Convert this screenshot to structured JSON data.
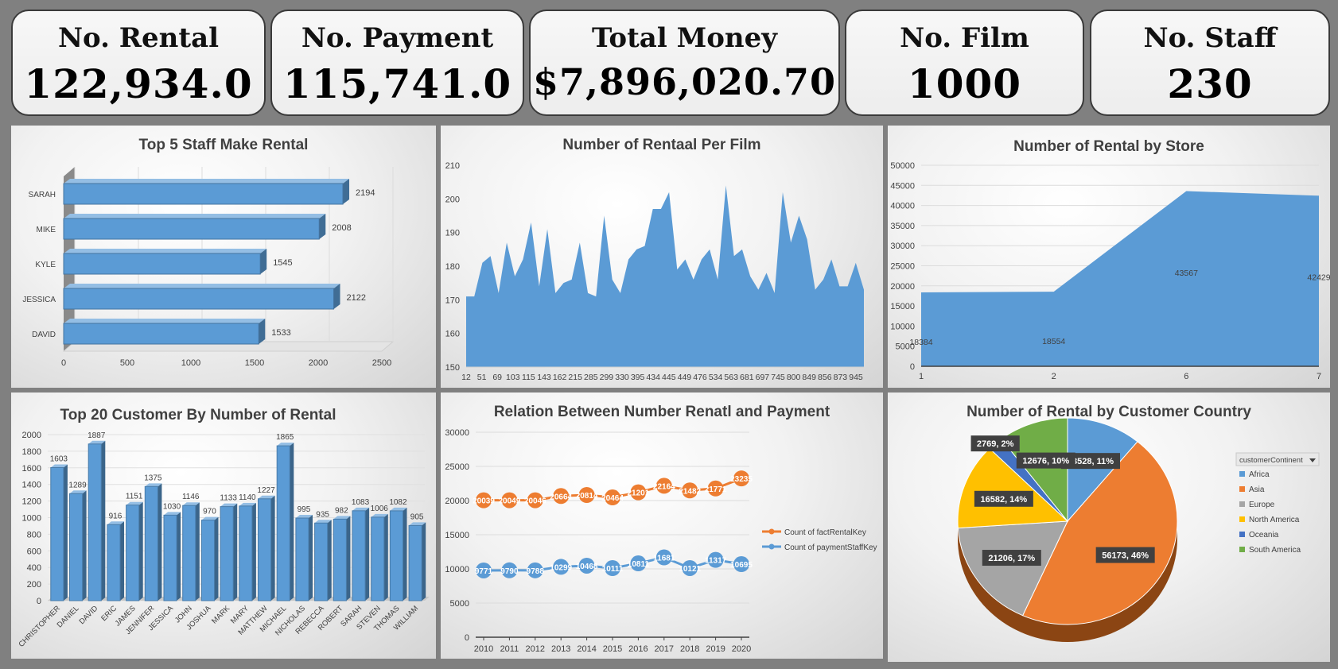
{
  "kpis": [
    {
      "label": "No. Rental",
      "value": "122,934.0"
    },
    {
      "label": "No. Payment",
      "value": "115,741.0"
    },
    {
      "label": "Total Money",
      "value": "$7,896,020.70"
    },
    {
      "label": "No. Film",
      "value": "1000"
    },
    {
      "label": "No. Staff",
      "value": "230"
    }
  ],
  "chart_data": [
    {
      "id": "staff",
      "type": "bar",
      "orientation": "horizontal",
      "title": "Top 5 Staff Make Rental",
      "categories": [
        "SARAH",
        "MIKE",
        "KYLE",
        "JESSICA",
        "DAVID"
      ],
      "values": [
        2194,
        2008,
        1545,
        2122,
        1533
      ],
      "xlim": [
        0,
        2500
      ],
      "xticks": [
        0,
        500,
        1000,
        1500,
        2000,
        2500
      ],
      "color": "#5b9bd5"
    },
    {
      "id": "film",
      "type": "area",
      "title": "Number of Rentaal Per Film",
      "x_ticks": [
        "12",
        "51",
        "69",
        "103",
        "115",
        "143",
        "162",
        "215",
        "285",
        "299",
        "330",
        "395",
        "434",
        "445",
        "449",
        "476",
        "534",
        "563",
        "681",
        "697",
        "745",
        "800",
        "849",
        "856",
        "873",
        "945"
      ],
      "values": [
        171,
        171,
        181,
        183,
        172,
        187,
        177,
        182,
        193,
        174,
        191,
        172,
        175,
        176,
        187,
        172,
        171,
        195,
        176,
        172,
        182,
        185,
        186,
        197,
        197,
        202,
        179,
        182,
        176,
        182,
        185,
        176,
        204,
        183,
        185,
        177,
        173,
        178,
        172,
        202,
        187,
        195,
        188,
        173,
        176,
        182,
        174,
        174,
        181,
        173
      ],
      "ylim": [
        150,
        210
      ],
      "yticks": [
        150,
        160,
        170,
        180,
        190,
        200,
        210
      ],
      "color": "#5b9bd5"
    },
    {
      "id": "store",
      "type": "area",
      "title": "Number of Rental by Store",
      "categories": [
        "1",
        "2",
        "6",
        "7"
      ],
      "values": [
        18384,
        18554,
        43567,
        42429
      ],
      "ylim": [
        0,
        50000
      ],
      "yticks": [
        0,
        5000,
        10000,
        15000,
        20000,
        25000,
        30000,
        35000,
        40000,
        45000,
        50000
      ],
      "color": "#5b9bd5"
    },
    {
      "id": "customer",
      "type": "bar",
      "title": "Top 20 Customer By Number of Rental",
      "categories": [
        "CHRISTOPHER",
        "DANIEL",
        "DAVID",
        "ERIC",
        "JAMES",
        "JENNIFER",
        "JESSICA",
        "JOHN",
        "JOSHUA",
        "MARK",
        "MARY",
        "MATTHEW",
        "MICHAEL",
        "NICHOLAS",
        "REBECCA",
        "ROBERT",
        "SARAH",
        "STEVEN",
        "THOMAS",
        "WILLIAM"
      ],
      "values": [
        1603,
        1289,
        1887,
        916,
        1151,
        1375,
        1030,
        1146,
        970,
        1133,
        1140,
        1227,
        1865,
        995,
        935,
        982,
        1083,
        1006,
        1082,
        905
      ],
      "ylim": [
        0,
        2000
      ],
      "yticks": [
        0,
        200,
        400,
        600,
        800,
        1000,
        1200,
        1400,
        1600,
        1800,
        2000
      ],
      "color": "#5b9bd5"
    },
    {
      "id": "relation",
      "type": "line",
      "title": "Relation Between Number Renatl and Payment",
      "x": [
        "2010",
        "2011",
        "2012",
        "2013",
        "2014",
        "2015",
        "2016",
        "2017",
        "2018",
        "2019",
        "2020"
      ],
      "series": [
        {
          "name": "Count of factRentalKey",
          "values": [
            20039,
            20049,
            20046,
            20664,
            20814,
            20464,
            21201,
            22164,
            21482,
            21771,
            23235
          ],
          "labels": [
            "20039",
            "20049",
            "20046",
            "20664",
            "20814",
            "20464",
            "21201",
            "22164",
            "21482",
            "21771",
            "23235"
          ],
          "color": "#ed7d31"
        },
        {
          "name": "Count of paymentStaffKey",
          "values": [
            9771,
            9790,
            9788,
            10299,
            10468,
            10111,
            10811,
            11681,
            10121,
            11317,
            10695
          ],
          "labels": [
            "9771",
            "9790",
            "9788",
            "10299",
            "10468",
            "10111",
            "10811",
            "11681",
            "10121",
            "11317",
            "10695"
          ],
          "color": "#5b9bd5"
        }
      ],
      "ylim": [
        0,
        30000
      ],
      "yticks": [
        0,
        5000,
        10000,
        15000,
        20000,
        25000,
        30000
      ]
    },
    {
      "id": "country",
      "type": "pie",
      "title": "Number of Rental by Customer Country",
      "legend_title": "customerContinent",
      "slices": [
        {
          "name": "Africa",
          "value": 13528,
          "label": "13528, 11%",
          "color": "#5b9bd5"
        },
        {
          "name": "Asia",
          "value": 56173,
          "label": "56173, 46%",
          "color": "#ed7d31"
        },
        {
          "name": "Europe",
          "value": 21206,
          "label": "21206, 17%",
          "color": "#a5a5a5"
        },
        {
          "name": "North America",
          "value": 16582,
          "label": "16582, 14%",
          "color": "#ffc000"
        },
        {
          "name": "Oceania",
          "value": 2769,
          "label": "2769, 2%",
          "color": "#4472c4"
        },
        {
          "name": "South America",
          "value": 12676,
          "label": "12676, 10%",
          "color": "#70ad47"
        }
      ],
      "legend_position": "right"
    }
  ]
}
